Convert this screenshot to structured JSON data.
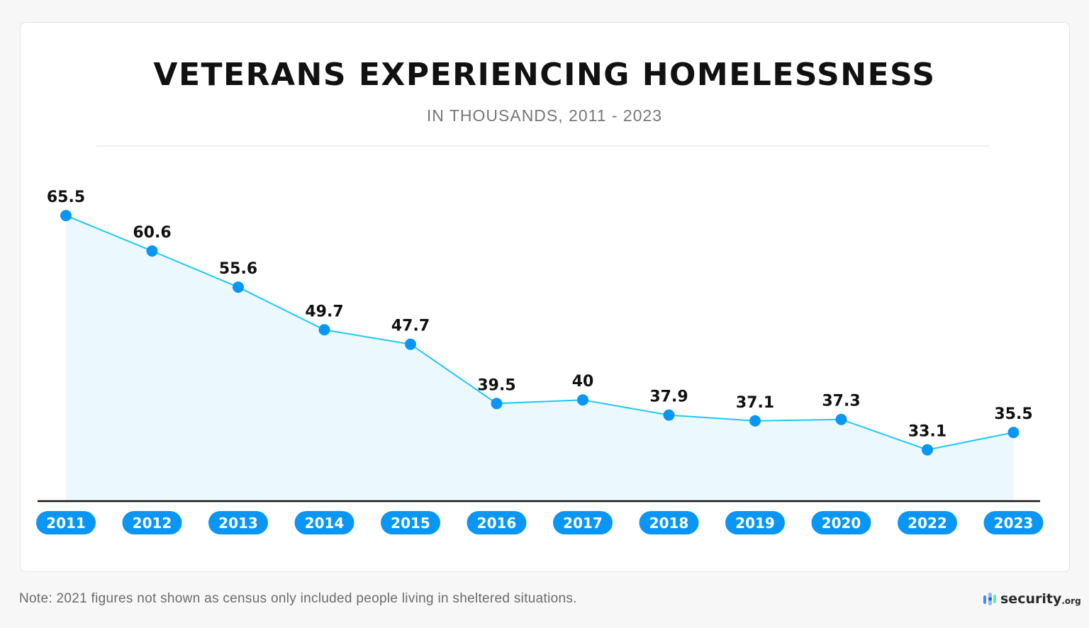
{
  "chart_data": {
    "type": "area",
    "title": "VETERANS EXPERIENCING HOMELESSNESS",
    "subtitle": "IN THOUSANDS, 2011 - 2023",
    "categories": [
      "2011",
      "2012",
      "2013",
      "2014",
      "2015",
      "2016",
      "2017",
      "2018",
      "2019",
      "2020",
      "2022",
      "2023"
    ],
    "values": [
      65.5,
      60.6,
      55.6,
      49.7,
      47.7,
      39.5,
      40,
      37.9,
      37.1,
      37.3,
      33.1,
      35.5
    ],
    "labels": [
      "65.5",
      "60.6",
      "55.6",
      "49.7",
      "47.7",
      "39.5",
      "40",
      "37.9",
      "37.1",
      "37.3",
      "33.1",
      "35.5"
    ],
    "ylim": [
      26,
      70
    ],
    "grid": false,
    "colors": {
      "line": "#1ec8f5",
      "point": "#0a96f5",
      "fill": "#ebf8fd",
      "pill": "#0a96f5",
      "axis": "#111111"
    }
  },
  "note": "Note: 2021 figures not shown as census only included people living in sheltered situations.",
  "logo": {
    "name": "security",
    "suffix": ".org"
  }
}
